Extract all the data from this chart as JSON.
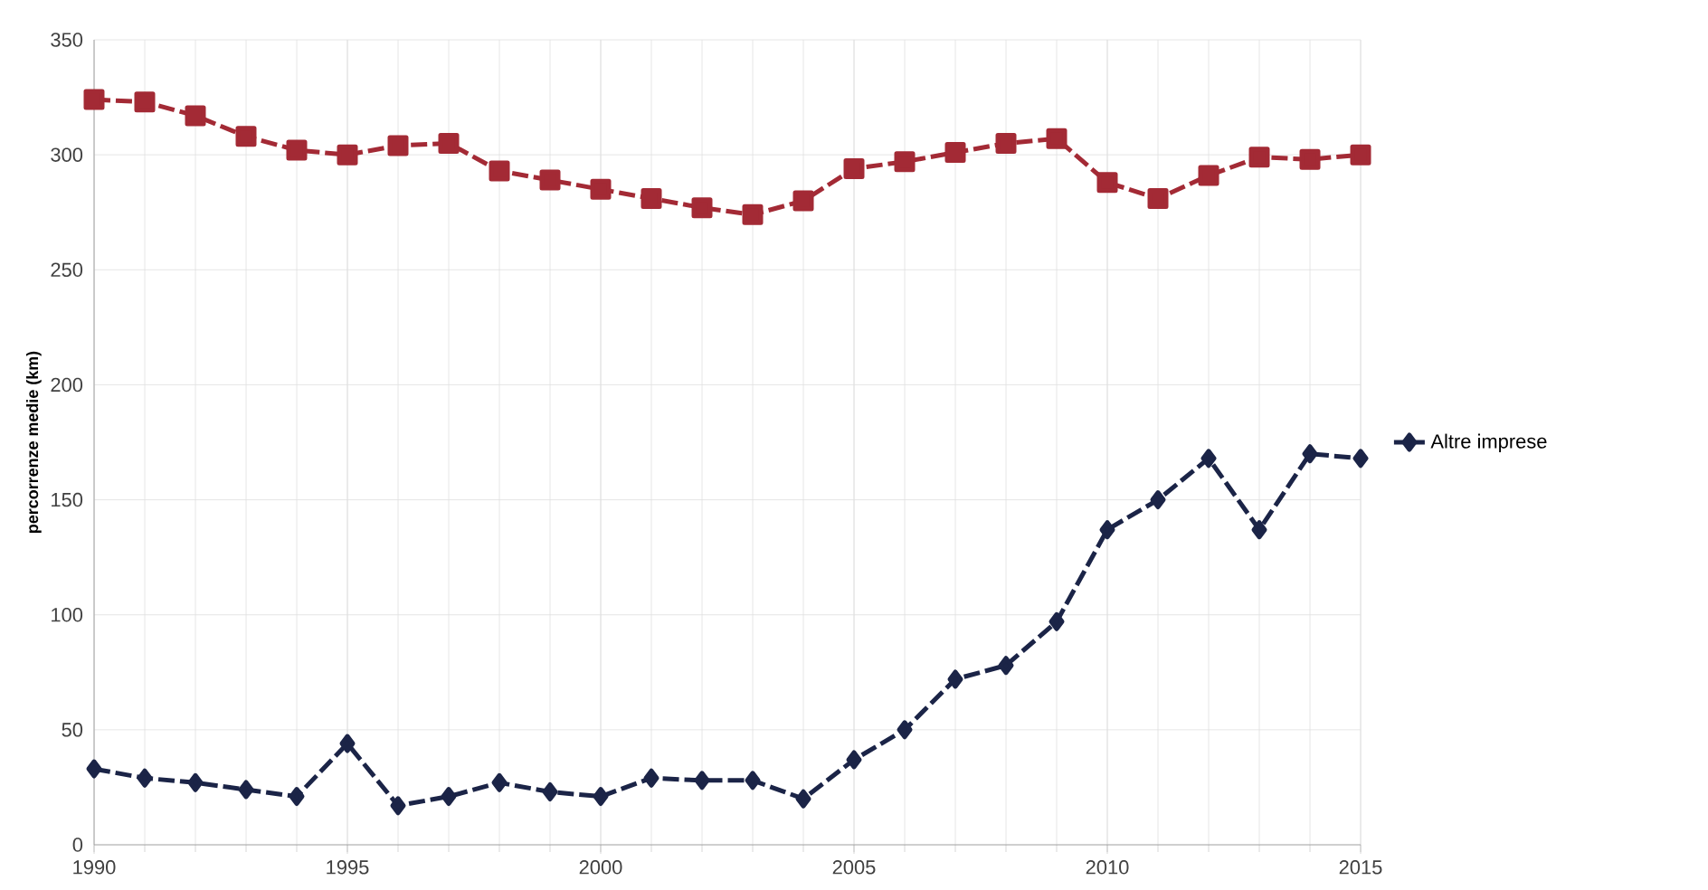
{
  "chart_data": {
    "type": "line",
    "ylabel": "percorrenze medie (km)",
    "x": [
      1990,
      1991,
      1992,
      1993,
      1994,
      1995,
      1996,
      1997,
      1998,
      1999,
      2000,
      2001,
      2002,
      2003,
      2004,
      2005,
      2006,
      2007,
      2008,
      2009,
      2010,
      2011,
      2012,
      2013,
      2014,
      2015
    ],
    "xlim": [
      1990,
      2015
    ],
    "xticks": [
      1990,
      1995,
      2000,
      2005,
      2010,
      2015
    ],
    "ylim": [
      0,
      350
    ],
    "yticks": [
      0,
      50,
      100,
      150,
      200,
      250,
      300,
      350
    ],
    "grid": true,
    "legend": "right",
    "series": [
      {
        "color": "#a32a35",
        "marker": "square",
        "line_style": "dashed",
        "values": [
          324,
          323,
          317,
          308,
          302,
          300,
          304,
          305,
          293,
          289,
          285,
          281,
          277,
          274,
          280,
          294,
          297,
          301,
          305,
          307,
          288,
          281,
          291,
          299,
          298,
          300
        ]
      },
      {
        "name": "Altre imprese",
        "color": "#1b2447",
        "marker": "diamond",
        "line_style": "dashed",
        "values": [
          33,
          29,
          27,
          24,
          21,
          44,
          17,
          21,
          27,
          23,
          21,
          29,
          28,
          28,
          20,
          37,
          50,
          72,
          78,
          97,
          137,
          150,
          168,
          137,
          170,
          168
        ]
      }
    ]
  }
}
